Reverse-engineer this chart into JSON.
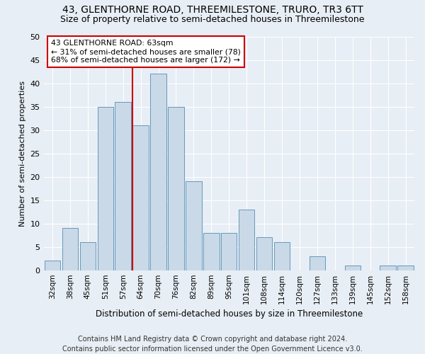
{
  "title": "43, GLENTHORNE ROAD, THREEMILESTONE, TRURO, TR3 6TT",
  "subtitle": "Size of property relative to semi-detached houses in Threemilestone",
  "xlabel": "Distribution of semi-detached houses by size in Threemilestone",
  "ylabel": "Number of semi-detached properties",
  "categories": [
    "32sqm",
    "38sqm",
    "45sqm",
    "51sqm",
    "57sqm",
    "64sqm",
    "70sqm",
    "76sqm",
    "82sqm",
    "89sqm",
    "95sqm",
    "101sqm",
    "108sqm",
    "114sqm",
    "120sqm",
    "127sqm",
    "133sqm",
    "139sqm",
    "145sqm",
    "152sqm",
    "158sqm"
  ],
  "values": [
    2,
    9,
    6,
    35,
    36,
    31,
    42,
    35,
    19,
    8,
    8,
    13,
    7,
    6,
    0,
    3,
    0,
    1,
    0,
    1,
    1
  ],
  "bar_color": "#c9d9e8",
  "bar_edge_color": "#6699bb",
  "highlight_index": 5,
  "highlight_line_color": "#cc0000",
  "annotation_text": "43 GLENTHORNE ROAD: 63sqm\n← 31% of semi-detached houses are smaller (78)\n68% of semi-detached houses are larger (172) →",
  "annotation_box_color": "#ffffff",
  "annotation_box_edge_color": "#cc0000",
  "ylim": [
    0,
    50
  ],
  "yticks": [
    0,
    5,
    10,
    15,
    20,
    25,
    30,
    35,
    40,
    45,
    50
  ],
  "footer": "Contains HM Land Registry data © Crown copyright and database right 2024.\nContains public sector information licensed under the Open Government Licence v3.0.",
  "bg_color": "#e8eef5",
  "plot_bg_color": "#e8eef5",
  "grid_color": "#ffffff",
  "title_fontsize": 10,
  "subtitle_fontsize": 9,
  "footer_fontsize": 7
}
